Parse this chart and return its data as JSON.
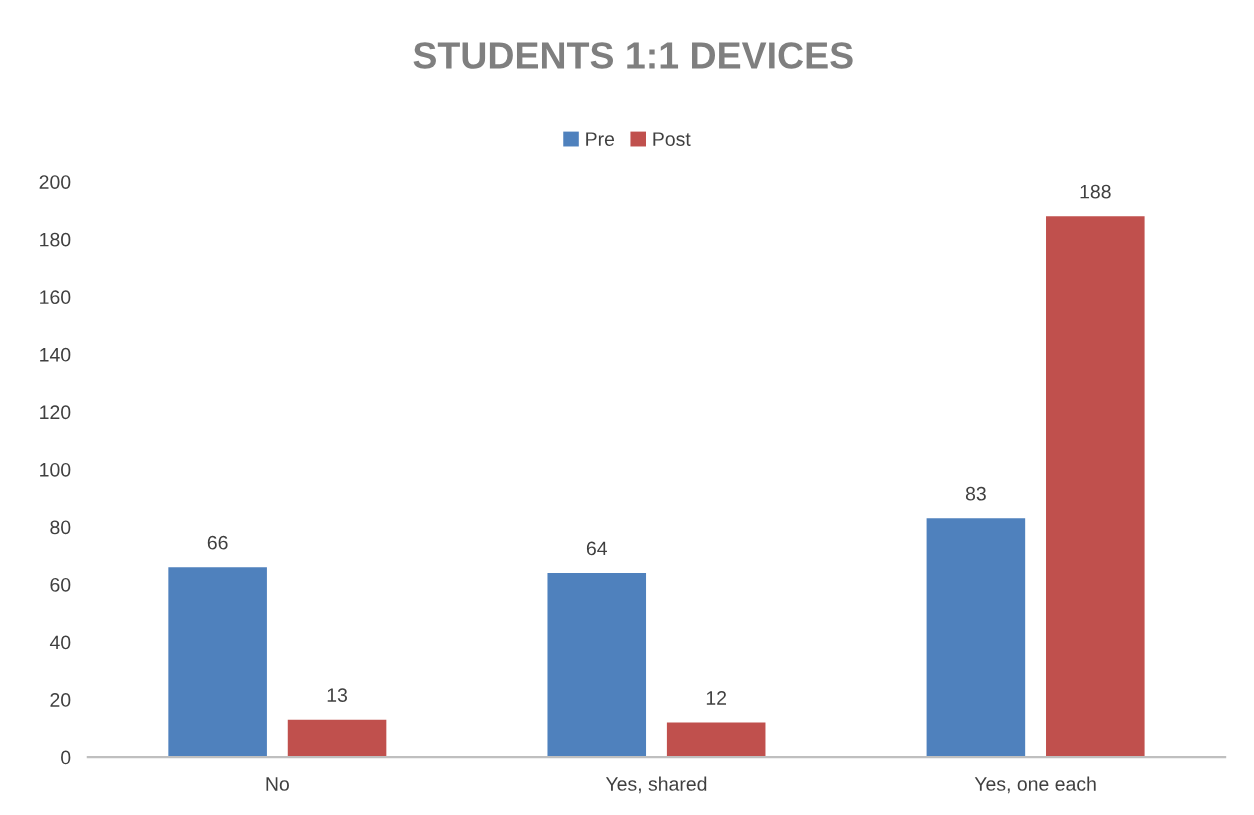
{
  "chart_data": {
    "type": "bar",
    "title": "STUDENTS 1:1 DEVICES",
    "categories": [
      "No",
      "Yes, shared",
      "Yes, one each"
    ],
    "series": [
      {
        "name": "Pre",
        "color": "#4f81bd",
        "values": [
          66,
          64,
          83
        ]
      },
      {
        "name": "Post",
        "color": "#c0504d",
        "values": [
          13,
          12,
          188
        ]
      }
    ],
    "ylim": [
      0,
      200
    ],
    "yticks": [
      0,
      20,
      40,
      60,
      80,
      100,
      120,
      140,
      160,
      180,
      200
    ],
    "grid": false,
    "legend": "top",
    "data_labels": true
  }
}
